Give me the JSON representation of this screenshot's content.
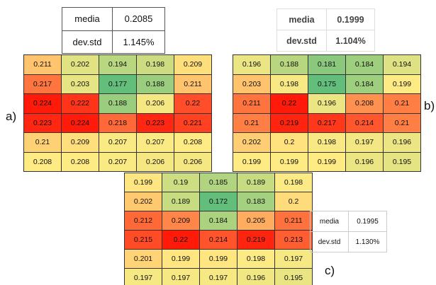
{
  "color_scale": [
    "#63be7b",
    "#ffeb84",
    "#ff1a0a"
  ],
  "panels": [
    {
      "label": "a)",
      "stats": [
        {
          "name": "media",
          "value": 0.2085
        },
        {
          "name": "dev.std",
          "value": "1.145%"
        }
      ],
      "grid": [
        [
          0.211,
          0.202,
          0.194,
          0.198,
          0.209
        ],
        [
          0.217,
          0.203,
          0.177,
          0.188,
          0.211
        ],
        [
          0.224,
          0.222,
          0.188,
          0.206,
          0.22
        ],
        [
          0.223,
          0.224,
          0.218,
          0.223,
          0.221
        ],
        [
          0.21,
          0.209,
          0.207,
          0.207,
          0.208
        ],
        [
          0.208,
          0.208,
          0.207,
          0.206,
          0.206
        ]
      ]
    },
    {
      "label": "b)",
      "stats": [
        {
          "name": "media",
          "value": 0.1999
        },
        {
          "name": "dev.std",
          "value": "1.104%"
        }
      ],
      "grid": [
        [
          0.196,
          0.188,
          0.181,
          0.184,
          0.194
        ],
        [
          0.203,
          0.198,
          0.175,
          0.184,
          0.199
        ],
        [
          0.211,
          0.22,
          0.196,
          0.208,
          0.21
        ],
        [
          0.21,
          0.219,
          0.217,
          0.214,
          0.21
        ],
        [
          0.202,
          0.2,
          0.198,
          0.197,
          0.196
        ],
        [
          0.199,
          0.199,
          0.199,
          0.196,
          0.195
        ]
      ]
    },
    {
      "label": "c)",
      "stats": [
        {
          "name": "media",
          "value": 0.1995
        },
        {
          "name": "dev.std",
          "value": "1.130%"
        }
      ],
      "grid": [
        [
          0.199,
          0.19,
          0.185,
          0.189,
          0.198
        ],
        [
          0.202,
          0.189,
          0.172,
          0.183,
          0.2
        ],
        [
          0.212,
          0.209,
          0.184,
          0.205,
          0.211
        ],
        [
          0.215,
          0.22,
          0.214,
          0.219,
          0.213
        ],
        [
          0.201,
          0.199,
          0.199,
          0.198,
          0.197
        ],
        [
          0.197,
          0.197,
          0.197,
          0.196,
          0.195
        ]
      ]
    }
  ]
}
